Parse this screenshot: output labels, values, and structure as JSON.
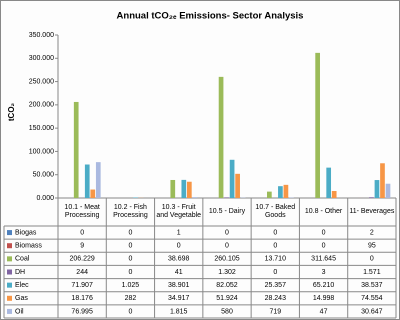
{
  "chart_data": {
    "type": "bar",
    "title": "Annual tCO₂ₑ Emissions- Sector Analysis",
    "y_label": "tCO₂",
    "categories": [
      "10.1 - Meat Processing",
      "10.2 - Fish Processing",
      "10.3 - Fruit and Vegetable",
      "10.5 - Dairy",
      "10.7 - Baked Goods",
      "10.8 - Other",
      "11- Beverages"
    ],
    "ylim": [
      0,
      350000
    ],
    "yticks": [
      {
        "value": 0,
        "label": "0.000"
      },
      {
        "value": 50000,
        "label": "50.000"
      },
      {
        "value": 100000,
        "label": "100.000"
      },
      {
        "value": 150000,
        "label": "150.000"
      },
      {
        "value": 200000,
        "label": "200.000"
      },
      {
        "value": 250000,
        "label": "250.000"
      },
      {
        "value": 300000,
        "label": "300.000"
      },
      {
        "value": 350000,
        "label": "350.000"
      }
    ],
    "series": [
      {
        "name": "Biogas",
        "color": "#4f81bd",
        "values": [
          0,
          0,
          1,
          0,
          0,
          0,
          2
        ],
        "value_labels": [
          "0",
          "0",
          "1",
          "0",
          "0",
          "0",
          "2"
        ]
      },
      {
        "name": "Biomass",
        "color": "#c0504d",
        "values": [
          9,
          0,
          0,
          0,
          0,
          0,
          95
        ],
        "value_labels": [
          "9",
          "0",
          "0",
          "0",
          "0",
          "0",
          "95"
        ]
      },
      {
        "name": "Coal",
        "color": "#9bbb59",
        "values": [
          206229,
          0,
          38698,
          260105,
          13710,
          311645,
          0
        ],
        "value_labels": [
          "206.229",
          "0",
          "38.698",
          "260.105",
          "13.710",
          "311.645",
          "0"
        ]
      },
      {
        "name": "DH",
        "color": "#8064a2",
        "values": [
          244,
          0,
          41,
          1302,
          0,
          3,
          1571
        ],
        "value_labels": [
          "244",
          "0",
          "41",
          "1.302",
          "0",
          "3",
          "1.571"
        ]
      },
      {
        "name": "Elec",
        "color": "#4bacc6",
        "values": [
          71907,
          1025,
          38901,
          82052,
          25357,
          65210,
          38537
        ],
        "value_labels": [
          "71.907",
          "1.025",
          "38.901",
          "82.052",
          "25.357",
          "65.210",
          "38.537"
        ]
      },
      {
        "name": "Gas",
        "color": "#f79646",
        "values": [
          18176,
          282,
          34917,
          51924,
          28243,
          14998,
          74554
        ],
        "value_labels": [
          "18.176",
          "282",
          "34.917",
          "51.924",
          "28.243",
          "14.998",
          "74.554"
        ]
      },
      {
        "name": "Oil",
        "color": "#aab9e0",
        "values": [
          76995,
          0,
          1815,
          580,
          719,
          47,
          30647
        ],
        "value_labels": [
          "76.995",
          "0",
          "1.815",
          "580",
          "719",
          "47",
          "30.647"
        ]
      }
    ]
  }
}
